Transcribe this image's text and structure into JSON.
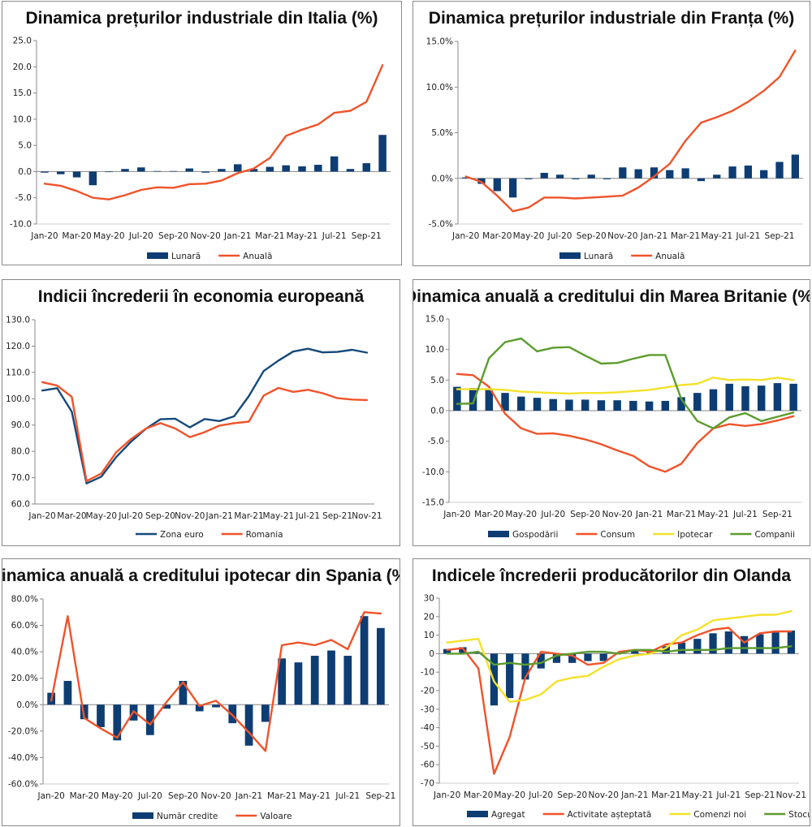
{
  "colors": {
    "navy": "#0d3d73",
    "orange": "#f0532a",
    "yellow": "#f5e12a",
    "green": "#5c9c2e",
    "teal": "#14497a"
  },
  "chart_data": [
    {
      "id": "italia",
      "type": "bar+line",
      "title": "Dinamica prețurilor industriale din Italia (%)",
      "categories": [
        "Jan-20",
        "Feb-20",
        "Mar-20",
        "Apr-20",
        "May-20",
        "Jun-20",
        "Jul-20",
        "Aug-20",
        "Sep-20",
        "Oct-20",
        "Nov-20",
        "Dec-20",
        "Jan-21",
        "Feb-21",
        "Mar-21",
        "Apr-21",
        "May-21",
        "Jun-21",
        "Jul-21",
        "Aug-21",
        "Sep-21",
        "Oct-21"
      ],
      "tick_labels": [
        "Jan-20",
        "Mar-20",
        "May-20",
        "Jul-20",
        "Sep-20",
        "Nov-20",
        "Jan-21",
        "Mar-21",
        "May-21",
        "Jul-21",
        "Sep-21"
      ],
      "ylim": [
        -10,
        25
      ],
      "ystep": 5,
      "ytick_decimals": 1,
      "ytick_suffix": "",
      "series": [
        {
          "name": "Lunară",
          "kind": "bar",
          "color": "#0d3d73",
          "values": [
            -0.2,
            -0.5,
            -1.1,
            -2.6,
            -0.1,
            0.5,
            0.8,
            0.1,
            0.1,
            0.6,
            -0.2,
            0.5,
            1.4,
            0.5,
            0.9,
            1.2,
            1.0,
            1.3,
            2.9,
            0.5,
            1.6,
            7.0
          ]
        },
        {
          "name": "Anuală",
          "kind": "line",
          "color": "#f0532a",
          "values": [
            -2.3,
            -2.7,
            -3.7,
            -5.0,
            -5.3,
            -4.5,
            -3.5,
            -3.0,
            -3.1,
            -2.4,
            -2.3,
            -1.7,
            -0.3,
            0.6,
            2.6,
            6.8,
            8.0,
            9.0,
            11.2,
            11.6,
            13.3,
            20.3
          ]
        }
      ]
    },
    {
      "id": "franta",
      "type": "bar+line",
      "title": "Dinamica prețurilor industriale din Franța (%)",
      "categories": [
        "Jan-20",
        "Feb-20",
        "Mar-20",
        "Apr-20",
        "May-20",
        "Jun-20",
        "Jul-20",
        "Aug-20",
        "Sep-20",
        "Oct-20",
        "Nov-20",
        "Dec-20",
        "Jan-21",
        "Feb-21",
        "Mar-21",
        "Apr-21",
        "May-21",
        "Jun-21",
        "Jul-21",
        "Aug-21",
        "Sep-21",
        "Oct-21"
      ],
      "tick_labels": [
        "Jan-20",
        "Mar-20",
        "May-20",
        "Jul-20",
        "Sep-20",
        "Nov-20",
        "Jan-21",
        "Mar-21",
        "May-21",
        "Jul-21",
        "Sep-21"
      ],
      "ylim": [
        -5,
        15
      ],
      "ystep": 5,
      "ytick_decimals": 1,
      "ytick_suffix": "%",
      "series": [
        {
          "name": "Lunară",
          "kind": "bar",
          "color": "#0d3d73",
          "values": [
            0.1,
            -0.6,
            -1.4,
            -2.1,
            -0.1,
            0.6,
            0.4,
            -0.1,
            0.4,
            -0.1,
            1.2,
            1.0,
            1.2,
            0.9,
            1.1,
            -0.3,
            0.4,
            1.3,
            1.4,
            0.9,
            1.8,
            2.6
          ]
        },
        {
          "name": "Anuală",
          "kind": "line",
          "color": "#f0532a",
          "values": [
            0.2,
            -0.4,
            -1.9,
            -3.6,
            -3.2,
            -2.1,
            -2.1,
            -2.2,
            -2.1,
            -2.0,
            -1.9,
            -1.0,
            0.2,
            1.6,
            4.1,
            6.1,
            6.7,
            7.4,
            8.4,
            9.6,
            11.1,
            14.0
          ]
        }
      ]
    },
    {
      "id": "incredere_ue",
      "type": "line",
      "title": "Indicii încrederii în economia europeană",
      "categories": [
        "Jan-20",
        "Feb-20",
        "Mar-20",
        "Apr-20",
        "May-20",
        "Jun-20",
        "Jul-20",
        "Aug-20",
        "Sep-20",
        "Oct-20",
        "Nov-20",
        "Dec-20",
        "Jan-21",
        "Feb-21",
        "Mar-21",
        "Apr-21",
        "May-21",
        "Jun-21",
        "Jul-21",
        "Aug-21",
        "Sep-21",
        "Oct-21",
        "Nov-21"
      ],
      "tick_labels": [
        "Jan-20",
        "Mar-20",
        "May-20",
        "Jul-20",
        "Sep-20",
        "Nov-20",
        "Jan-21",
        "Mar-21",
        "May-21",
        "Jul-21",
        "Sep-21",
        "Nov-21"
      ],
      "ylim": [
        60,
        130
      ],
      "ystep": 10,
      "ytick_decimals": 1,
      "ytick_suffix": "",
      "series": [
        {
          "name": "Zona euro",
          "kind": "line",
          "color": "#14497a",
          "values": [
            103.1,
            104.0,
            95.1,
            67.8,
            70.4,
            77.8,
            83.6,
            88.5,
            92.2,
            92.4,
            89.1,
            92.3,
            91.5,
            93.3,
            101.0,
            110.5,
            114.5,
            117.9,
            119.0,
            117.6,
            117.8,
            118.6,
            117.5
          ]
        },
        {
          "name": "Romania",
          "kind": "line",
          "color": "#f0532a",
          "values": [
            106.3,
            105.0,
            100.7,
            68.7,
            71.6,
            79.6,
            84.6,
            88.6,
            90.7,
            88.7,
            85.4,
            87.3,
            89.8,
            90.7,
            91.3,
            101.2,
            104.1,
            102.6,
            103.4,
            102.1,
            100.2,
            99.7,
            99.5
          ]
        }
      ]
    },
    {
      "id": "credit_uk",
      "type": "bar+line",
      "title": "Dinamica anuală a creditului din Marea Britanie (%)",
      "categories": [
        "Jan-20",
        "Feb-20",
        "Mar-20",
        "Apr-20",
        "May-20",
        "Jun-20",
        "Jul-20",
        "Aug-20",
        "Sep-20",
        "Oct-20",
        "Nov-20",
        "Dec-20",
        "Jan-21",
        "Feb-21",
        "Mar-21",
        "Apr-21",
        "May-21",
        "Jun-21",
        "Jul-21",
        "Aug-21",
        "Sep-21",
        "Oct-21"
      ],
      "tick_labels": [
        "Jan-20",
        "Mar-20",
        "May-20",
        "Jul-20",
        "Sep-20",
        "Nov-20",
        "Jan-21",
        "Mar-21",
        "May-21",
        "Jul-21",
        "Sep-21"
      ],
      "ylim": [
        -15,
        15
      ],
      "ystep": 5,
      "ytick_decimals": 1,
      "ytick_suffix": "",
      "series": [
        {
          "name": "Gospodării",
          "kind": "bar",
          "color": "#0d3d73",
          "values": [
            3.9,
            3.7,
            3.6,
            2.9,
            2.3,
            2.1,
            1.9,
            1.8,
            1.8,
            1.7,
            1.7,
            1.6,
            1.5,
            1.6,
            2.2,
            2.9,
            3.5,
            4.4,
            4.0,
            4.1,
            4.5,
            4.4
          ]
        },
        {
          "name": "Consum",
          "kind": "line",
          "color": "#f0532a",
          "values": [
            6.0,
            5.8,
            3.9,
            -0.5,
            -2.9,
            -3.8,
            -3.7,
            -4.1,
            -4.7,
            -5.5,
            -6.5,
            -7.4,
            -9.1,
            -10.0,
            -8.7,
            -5.3,
            -2.9,
            -2.2,
            -2.5,
            -2.2,
            -1.6,
            -0.9
          ]
        },
        {
          "name": "Ipotecar",
          "kind": "line",
          "color": "#f5e12a",
          "values": [
            3.5,
            3.5,
            3.5,
            3.4,
            3.1,
            3.0,
            2.9,
            2.8,
            2.9,
            2.9,
            3.0,
            3.2,
            3.4,
            3.8,
            4.2,
            4.4,
            5.4,
            5.0,
            5.1,
            5.0,
            5.4,
            5.0
          ]
        },
        {
          "name": "Companii",
          "kind": "line",
          "color": "#5c9c2e",
          "values": [
            1.1,
            1.2,
            8.6,
            11.2,
            11.8,
            9.7,
            10.3,
            10.4,
            9.0,
            7.7,
            7.8,
            8.5,
            9.1,
            9.1,
            1.9,
            -1.7,
            -2.9,
            -1.1,
            -0.4,
            -1.7,
            -1.0,
            -0.3
          ]
        }
      ]
    },
    {
      "id": "ipotecar_spania",
      "type": "bar+line",
      "title": "Dinamica anuală a creditului ipotecar din Spania (%)",
      "categories": [
        "Jan-20",
        "Feb-20",
        "Mar-20",
        "Apr-20",
        "May-20",
        "Jun-20",
        "Jul-20",
        "Aug-20",
        "Sep-20",
        "Oct-20",
        "Nov-20",
        "Dec-20",
        "Jan-21",
        "Feb-21",
        "Mar-21",
        "Apr-21",
        "May-21",
        "Jun-21",
        "Jul-21",
        "Aug-21",
        "Sep-21"
      ],
      "tick_labels": [
        "Jan-20",
        "Mar-20",
        "May-20",
        "Jul-20",
        "Sep-20",
        "Nov-20",
        "Jan-21",
        "Mar-21",
        "May-21",
        "Jul-21",
        "Sep-21"
      ],
      "ylim": [
        -60,
        80
      ],
      "ystep": 20,
      "ytick_decimals": 1,
      "ytick_suffix": "%",
      "series": [
        {
          "name": "Număr credite",
          "kind": "bar",
          "color": "#0d3d73",
          "values": [
            9,
            18,
            -11,
            -17,
            -27,
            -12,
            -23,
            -3,
            18,
            -5,
            -2,
            -14,
            -31,
            -13,
            35,
            32,
            37,
            41,
            37,
            67,
            58
          ]
        },
        {
          "name": "Valoare",
          "kind": "line",
          "color": "#f0532a",
          "values": [
            3,
            67,
            -10,
            -18,
            -25,
            -5,
            -15,
            2,
            17,
            -1,
            3,
            -8,
            -21,
            -35,
            45,
            47,
            45,
            49,
            42,
            70,
            69
          ]
        }
      ]
    },
    {
      "id": "olanda",
      "type": "bar+line",
      "title": "Indicele încrederii producătorilor din Olanda",
      "categories": [
        "Jan-20",
        "Feb-20",
        "Mar-20",
        "Apr-20",
        "May-20",
        "Jun-20",
        "Jul-20",
        "Aug-20",
        "Sep-20",
        "Oct-20",
        "Nov-20",
        "Dec-20",
        "Jan-21",
        "Feb-21",
        "Mar-21",
        "Apr-21",
        "May-21",
        "Jun-21",
        "Jul-21",
        "Aug-21",
        "Sep-21",
        "Oct-21",
        "Nov-21"
      ],
      "tick_labels": [
        "Jan-20",
        "Mar-20",
        "May-20",
        "Jul-20",
        "Sep-20",
        "Nov-20",
        "Jan-21",
        "Mar-21",
        "May-21",
        "Jul-21",
        "Sep-21",
        "Nov-21"
      ],
      "ylim": [
        -70,
        30
      ],
      "ystep": 10,
      "ytick_decimals": 0,
      "ytick_suffix": "",
      "series": [
        {
          "name": "Agregat",
          "kind": "bar",
          "color": "#0d3d73",
          "values": [
            2.5,
            3.5,
            0.5,
            -28,
            -24,
            -14,
            -8,
            -5,
            -5,
            -4,
            -4,
            0.5,
            1.5,
            2,
            4,
            6,
            8,
            11,
            12,
            9.5,
            10.5,
            11.5,
            12.5
          ]
        },
        {
          "name": "Activitate așteptată",
          "kind": "line",
          "color": "#f0532a",
          "values": [
            2,
            3,
            -8,
            -65,
            -45,
            -13,
            1,
            0,
            -1,
            -6,
            -5,
            1,
            2,
            1,
            5,
            6,
            10,
            13,
            14,
            6,
            11,
            12,
            12
          ]
        },
        {
          "name": "Comenzi noi",
          "kind": "line",
          "color": "#f5e12a",
          "values": [
            6,
            7,
            8,
            -15,
            -26,
            -25,
            -22,
            -15,
            -13,
            -12,
            -7,
            -3,
            -1,
            0,
            3,
            10,
            13,
            18,
            19,
            20,
            21,
            21,
            23
          ]
        },
        {
          "name": "Stocuri",
          "kind": "line",
          "color": "#5c9c2e",
          "values": [
            0,
            0,
            1,
            -6,
            -5,
            -6,
            -5,
            -1,
            0,
            1,
            1,
            0,
            2,
            2,
            1,
            2,
            2,
            2,
            3,
            3,
            3,
            3,
            4
          ]
        }
      ]
    }
  ]
}
